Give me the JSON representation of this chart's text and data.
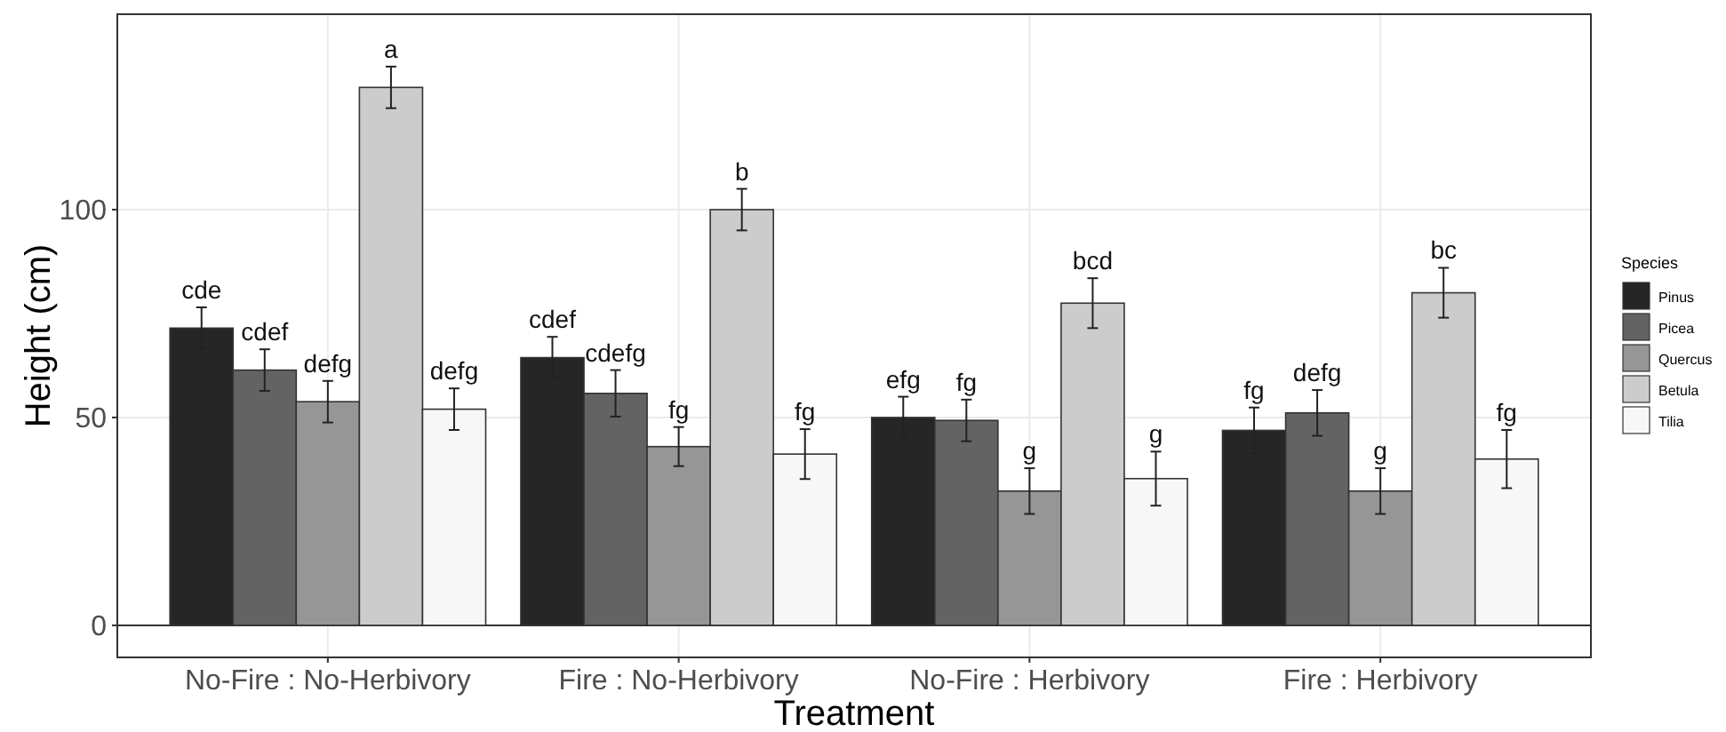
{
  "chart_data": {
    "type": "bar",
    "xlabel": "Treatment",
    "ylabel": "Height (cm)",
    "legend_title": "Species",
    "categories": [
      "No-Fire : No-Herbivory",
      "Fire : No-Herbivory",
      "No-Fire : Herbivory",
      "Fire : Herbivory"
    ],
    "series": [
      {
        "name": "Pinus",
        "color": "#262626",
        "values": [
          71.5,
          64.4,
          50,
          46.9
        ],
        "errors": [
          5,
          5,
          5,
          5.5
        ],
        "value_labels": [
          "cde",
          "cdef",
          "efg",
          "fg"
        ]
      },
      {
        "name": "Picea",
        "color": "#636363",
        "values": [
          61.4,
          55.8,
          49.3,
          51.1
        ],
        "errors": [
          5,
          5.6,
          5,
          5.5
        ],
        "value_labels": [
          "cdef",
          "cdefg",
          "fg",
          "defg"
        ]
      },
      {
        "name": "Quercus",
        "color": "#969696",
        "values": [
          53.8,
          43,
          32.3,
          32.3
        ],
        "errors": [
          5,
          4.7,
          5.5,
          5.5
        ],
        "value_labels": [
          "defg",
          "fg",
          "g",
          "g"
        ]
      },
      {
        "name": "Betula",
        "color": "#cccccc",
        "values": [
          129.4,
          100,
          77.5,
          80
        ],
        "errors": [
          5,
          5,
          6,
          6
        ],
        "value_labels": [
          "a",
          "b",
          "bcd",
          "bc"
        ]
      },
      {
        "name": "Tilia",
        "color": "#f7f7f7",
        "values": [
          52,
          41.2,
          35.3,
          40
        ],
        "errors": [
          5,
          6,
          6.5,
          7
        ],
        "value_labels": [
          "defg",
          "fg",
          "g",
          "fg"
        ]
      }
    ],
    "ylim": [
      -7.7,
      147
    ],
    "yticks": [
      0,
      50,
      100
    ],
    "grid": true,
    "legend": "right",
    "ref_lines": [
      {
        "axis": "y",
        "value": 0,
        "color": "#333333"
      }
    ]
  }
}
